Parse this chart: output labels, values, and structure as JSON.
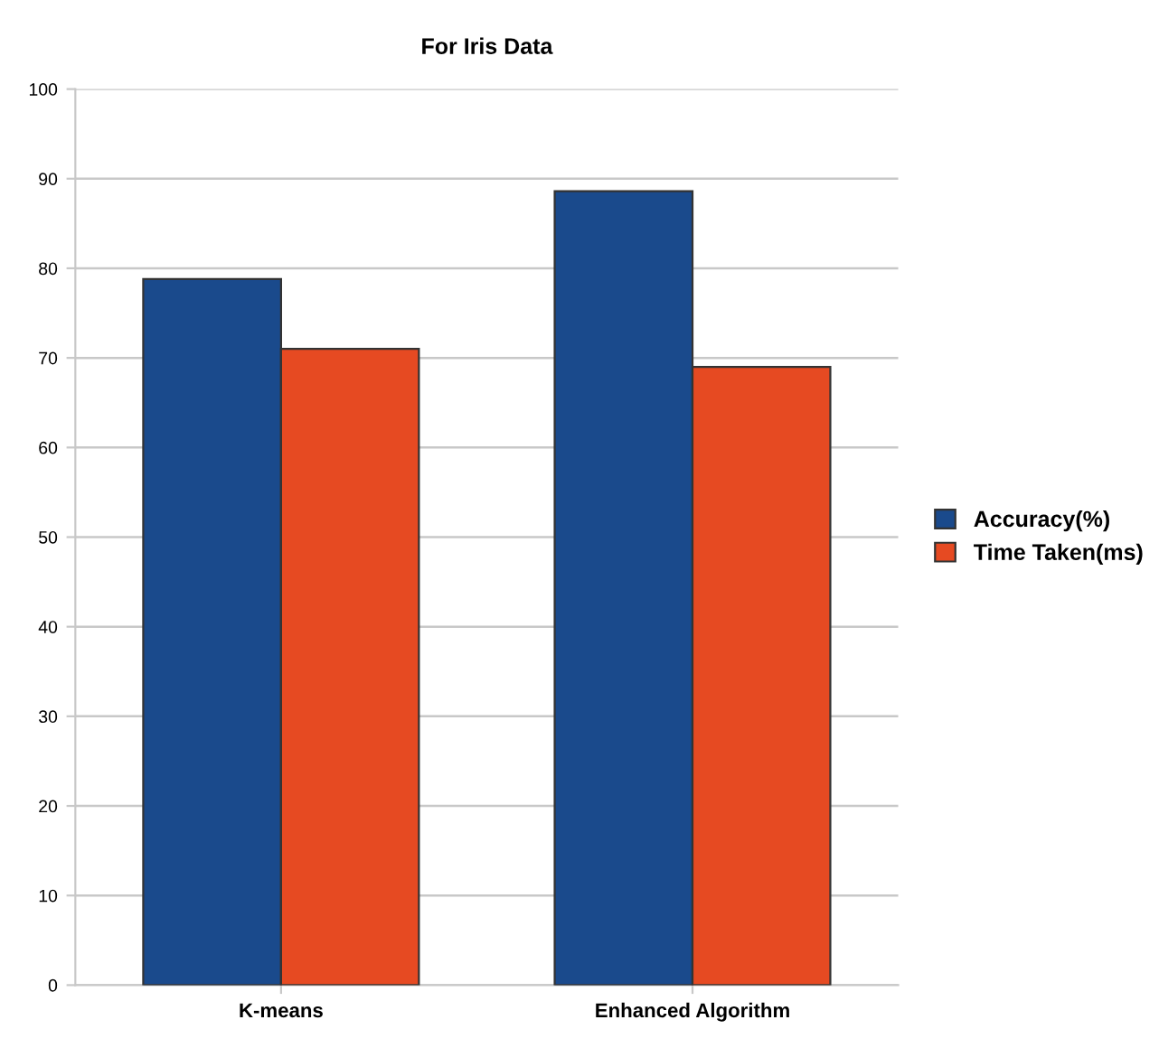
{
  "chart_data": {
    "type": "bar",
    "title": "For Iris Data",
    "categories": [
      "K-means",
      "Enhanced Algorithm"
    ],
    "series": [
      {
        "name": "Accuracy(%)",
        "color": "#1a4a8c",
        "values": [
          78.8,
          88.6
        ]
      },
      {
        "name": "Time Taken(ms)",
        "color": "#e64a22",
        "values": [
          71.0,
          69.0
        ]
      }
    ],
    "ylim": [
      0,
      100
    ],
    "yticks": [
      0,
      10,
      20,
      30,
      40,
      50,
      60,
      70,
      80,
      90,
      100
    ],
    "grid": "y",
    "legend": "right"
  }
}
